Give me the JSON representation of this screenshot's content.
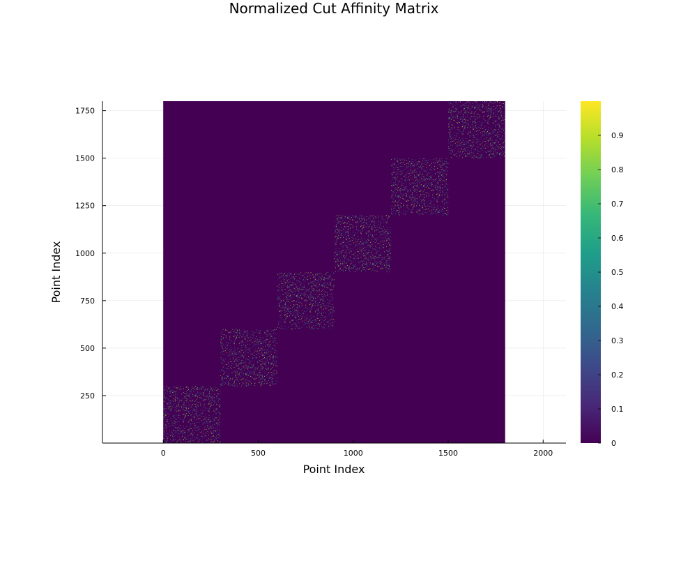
{
  "chart_data": {
    "type": "heatmap",
    "title": "Normalized Cut Affinity Matrix",
    "xlabel": "Point Index",
    "ylabel": "Point Index",
    "xlim": [
      -320,
      2120
    ],
    "ylim": [
      0,
      1800
    ],
    "matrix_extent": {
      "x": [
        0,
        1800
      ],
      "y": [
        0,
        1800
      ]
    },
    "x_ticks": [
      0,
      500,
      1000,
      1500,
      2000
    ],
    "y_ticks": [
      250,
      500,
      750,
      1000,
      1250,
      1500,
      1750
    ],
    "grid": true,
    "colorscale": "viridis",
    "color_range": [
      0,
      1
    ],
    "colorbar_ticks": [
      "0",
      "0.1",
      "0.2",
      "0.3",
      "0.4",
      "0.5",
      "0.6",
      "0.7",
      "0.8",
      "0.9"
    ],
    "clusters": [
      {
        "start": 0,
        "end": 300
      },
      {
        "start": 300,
        "end": 600
      },
      {
        "start": 600,
        "end": 900
      },
      {
        "start": 900,
        "end": 1200
      },
      {
        "start": 1200,
        "end": 1500
      },
      {
        "start": 1500,
        "end": 1800
      }
    ],
    "background_value": 0,
    "within_cluster_density": 0.08,
    "colors": {
      "viridis": [
        "#440154",
        "#482878",
        "#3e4989",
        "#31688e",
        "#26828e",
        "#1f9e89",
        "#35b779",
        "#6ece58",
        "#b5de2b",
        "#fde725"
      ]
    }
  }
}
